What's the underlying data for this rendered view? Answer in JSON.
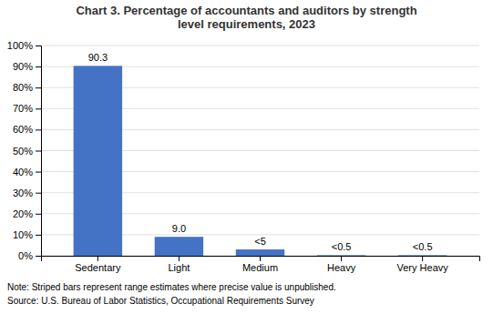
{
  "chart_data": {
    "type": "bar",
    "title": "Chart 3. Percentage of accountants and auditors by strength\nlevel requirements, 2023",
    "categories": [
      "Sedentary",
      "Light",
      "Medium",
      "Heavy",
      "Very Heavy"
    ],
    "values": [
      90.3,
      9.0,
      3.0,
      0.25,
      0.25
    ],
    "value_labels": [
      "90.3",
      "9.0",
      "<5",
      "<0.5",
      "<0.5"
    ],
    "data_labels": true,
    "color": "#4472C4",
    "ylim": [
      0,
      100
    ],
    "yticks": [
      {
        "value": 0,
        "label": "0%"
      },
      {
        "value": 10,
        "label": "10%"
      },
      {
        "value": 20,
        "label": "20%"
      },
      {
        "value": 30,
        "label": "30%"
      },
      {
        "value": 40,
        "label": "40%"
      },
      {
        "value": 50,
        "label": "50%"
      },
      {
        "value": 60,
        "label": "60%"
      },
      {
        "value": 70,
        "label": "70%"
      },
      {
        "value": 80,
        "label": "80%"
      },
      {
        "value": 90,
        "label": "90%"
      },
      {
        "value": 100,
        "label": "100%"
      }
    ],
    "grid": true,
    "annotations": [
      "Note: Striped bars represent range estimates where precise value is unpublished.",
      "Source: U.S. Bureau of Labor Statistics, Occupational Requirements Survey"
    ]
  }
}
